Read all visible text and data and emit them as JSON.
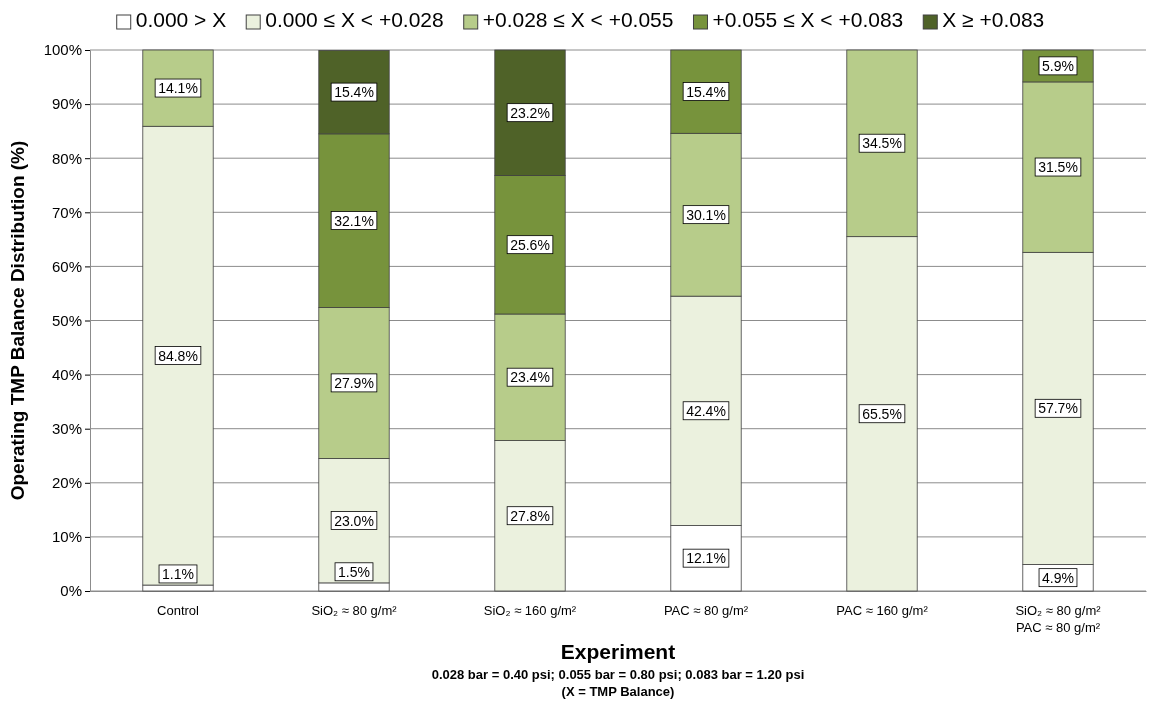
{
  "chart_data": {
    "type": "bar",
    "stacked": true,
    "xlabel": "Experiment",
    "ylabel": "Operating TMP Balance Distribution (%)",
    "categories": [
      "Control",
      "SiO₂ ≈ 80 g/m²",
      "SiO₂ ≈ 160 g/m²",
      "PAC ≈ 80 g/m²",
      "PAC ≈ 160 g/m²",
      "SiO₂ ≈ 80 g/m²\nPAC ≈ 80 g/m²"
    ],
    "series": [
      {
        "name": "0.000 > X",
        "color": "#ffffff",
        "values": [
          1.1,
          1.5,
          null,
          12.1,
          null,
          4.9
        ],
        "value_labels": [
          "1.1%",
          "1.5%",
          null,
          "12.1%",
          null,
          "4.9%"
        ]
      },
      {
        "name": "0.000 ≤ X < +0.028",
        "color": "#ebf1de",
        "values": [
          84.8,
          23.0,
          27.8,
          42.4,
          65.5,
          57.7
        ],
        "value_labels": [
          "84.8%",
          "23.0%",
          "27.8%",
          "42.4%",
          "65.5%",
          "57.7%"
        ]
      },
      {
        "name": "+0.028 ≤ X < +0.055",
        "color": "#b7cc8a",
        "values": [
          14.1,
          27.9,
          23.4,
          30.1,
          34.5,
          31.5
        ],
        "value_labels": [
          "14.1%",
          "27.9%",
          "23.4%",
          "30.1%",
          "34.5%",
          "31.5%"
        ]
      },
      {
        "name": "+0.055 ≤ X < +0.083",
        "color": "#77933c",
        "values": [
          null,
          32.1,
          25.6,
          15.4,
          null,
          5.9
        ],
        "value_labels": [
          null,
          "32.1%",
          "25.6%",
          "15.4%",
          null,
          "5.9%"
        ]
      },
      {
        "name": "X ≥ +0.083",
        "color": "#4f6228",
        "values": [
          null,
          15.4,
          23.2,
          null,
          null,
          null
        ],
        "value_labels": [
          null,
          "15.4%",
          "23.2%",
          null,
          null,
          null
        ]
      }
    ],
    "ylim": [
      0,
      100
    ],
    "yticks": [
      {
        "value": 0,
        "label": "0%"
      },
      {
        "value": 10,
        "label": "10%"
      },
      {
        "value": 20,
        "label": "20%"
      },
      {
        "value": 30,
        "label": "30%"
      },
      {
        "value": 40,
        "label": "40%"
      },
      {
        "value": 50,
        "label": "50%"
      },
      {
        "value": 60,
        "label": "60%"
      },
      {
        "value": 70,
        "label": "70%"
      },
      {
        "value": 80,
        "label": "80%"
      },
      {
        "value": 90,
        "label": "90%"
      },
      {
        "value": 100,
        "label": "100%"
      }
    ],
    "grid": "y",
    "legend": "top",
    "annotations": [
      "0.028 bar = 0.40 psi; 0.055 bar = 0.80 psi; 0.083 bar = 1.20 psi",
      "(X = TMP Balance)"
    ]
  }
}
